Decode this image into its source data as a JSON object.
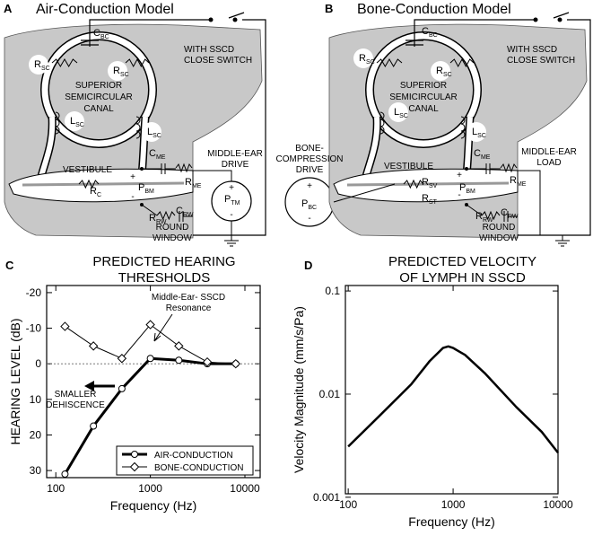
{
  "diagram_a": {
    "letter": "A",
    "title": "Air-Conduction Model",
    "symbols": [
      {
        "main": "C",
        "sub": "BC"
      },
      {
        "main": "R",
        "sub": "SC"
      },
      {
        "main": "R",
        "sub": "SC"
      },
      {
        "main": "L",
        "sub": "SC"
      },
      {
        "main": "L",
        "sub": "SC"
      },
      {
        "main": "C",
        "sub": "ME"
      },
      {
        "main": "R",
        "sub": "ME"
      },
      {
        "main": "R",
        "sub": "C"
      },
      {
        "main": "P",
        "sub": "BM"
      },
      {
        "main": "R",
        "sub": "RW"
      },
      {
        "main": "C",
        "sub": "RW"
      },
      {
        "main": "P",
        "sub": "TM"
      }
    ],
    "texts": [
      "WITH SSCD",
      "CLOSE SWITCH",
      "SUPERIOR",
      "SEMICIRCULAR",
      "CANAL",
      "MIDDLE-EAR",
      "DRIVE",
      "VESTIBULE",
      "ROUND",
      "WINDOW",
      "+",
      "-",
      "+",
      "-"
    ]
  },
  "diagram_b": {
    "letter": "B",
    "title": "Bone-Conduction Model",
    "symbols": [
      {
        "main": "C",
        "sub": "BC"
      },
      {
        "main": "R",
        "sub": "SC"
      },
      {
        "main": "R",
        "sub": "SC"
      },
      {
        "main": "L",
        "sub": "SC"
      },
      {
        "main": "L",
        "sub": "SC"
      },
      {
        "main": "C",
        "sub": "ME"
      },
      {
        "main": "R",
        "sub": "ME"
      },
      {
        "main": "R",
        "sub": "SV"
      },
      {
        "main": "R",
        "sub": "ST"
      },
      {
        "main": "P",
        "sub": "BM"
      },
      {
        "main": "R",
        "sub": "RW"
      },
      {
        "main": "C",
        "sub": "RW"
      },
      {
        "main": "P",
        "sub": "BC"
      }
    ],
    "texts": [
      "WITH SSCD",
      "CLOSE SWITCH",
      "SUPERIOR",
      "SEMICIRCULAR",
      "CANAL",
      "MIDDLE-EAR",
      "LOAD",
      "BONE-",
      "COMPRESSION",
      "DRIVE",
      "VESTIBULE",
      "ROUND",
      "WINDOW",
      "+",
      "-",
      "+",
      "-"
    ]
  },
  "chart_data": [
    {
      "type": "line",
      "panel": "C",
      "title": [
        "PREDICTED HEARING",
        "THRESHOLDS"
      ],
      "x_label": "Frequency (Hz)",
      "y_label": "HEARING LEVEL (dB)",
      "x_scale": "log",
      "xlim": [
        80,
        14500
      ],
      "xticks": [
        100,
        1000,
        10000
      ],
      "ylim": [
        -22,
        32
      ],
      "y_inverted": true,
      "yticks": [
        -20,
        -10,
        0,
        10,
        20,
        30
      ],
      "reference_line": 0,
      "legend": "lower right",
      "x": [
        125,
        250,
        500,
        1000,
        2000,
        4000,
        8000
      ],
      "series": [
        {
          "name": "AIR-CONDUCTION",
          "color": "#000000",
          "marker": "circle",
          "line_width": 3,
          "values": [
            31,
            17.5,
            7,
            -1.5,
            -1,
            0,
            0
          ]
        },
        {
          "name": "BONE-CONDUCTION",
          "color": "#000000",
          "marker": "diamond",
          "line_width": 1,
          "values": [
            -10.5,
            -5,
            -1.5,
            -11,
            -5,
            -0.5,
            0
          ]
        }
      ],
      "annotations": [
        [
          "Middle-Ear- SSCD",
          "Resonance"
        ],
        [
          "SMALLER",
          "DEHISCENCE"
        ]
      ]
    },
    {
      "type": "line",
      "panel": "D",
      "title": [
        "PREDICTED VELOCITY",
        "OF LYMPH IN SSCD"
      ],
      "x_label": "Frequency (Hz)",
      "y_label": "Velocity Magnitude (mm/s/Pa)",
      "x_scale": "log",
      "y_scale": "log",
      "xlim": [
        94,
        10000
      ],
      "xticks": [
        100,
        1000,
        10000
      ],
      "ylim": [
        0.00108,
        0.113
      ],
      "yticks": [
        0.001,
        0.01,
        0.1
      ],
      "x": [
        100,
        200,
        400,
        600,
        800,
        900,
        1000,
        1300,
        2000,
        4000,
        7000,
        10000
      ],
      "series": [
        {
          "color": "#000000",
          "marker": "none",
          "line_width": 2.5,
          "values": [
            0.0031,
            0.0062,
            0.0125,
            0.021,
            0.028,
            0.029,
            0.028,
            0.024,
            0.016,
            0.0075,
            0.0043,
            0.0027
          ]
        }
      ]
    }
  ]
}
